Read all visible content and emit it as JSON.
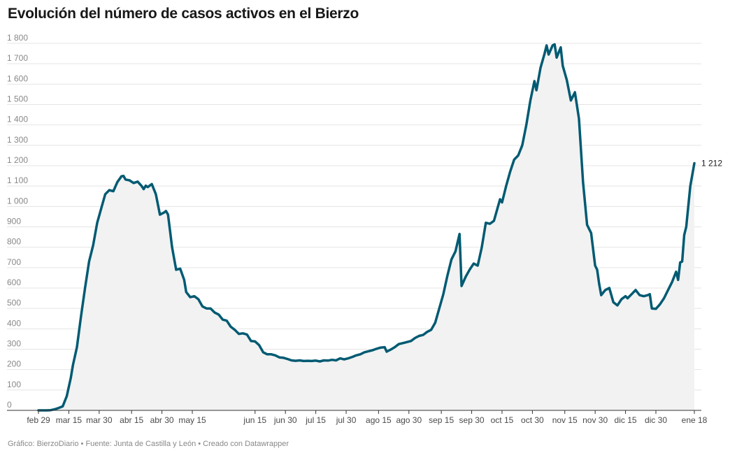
{
  "page": {
    "title": "Evolución del número de casos activos en el Bierzo",
    "footer": "Gráfico: BierzoDiario • Fuente: Junta de Castilla y León • Creado con Datawrapper"
  },
  "colors": {
    "line": "#005a72",
    "area": "#f2f2f2",
    "grid": "#e4e4e4"
  },
  "chart_data": {
    "type": "area",
    "title": "Evolución del número de casos activos en el Bierzo",
    "xlabel": "",
    "ylabel": "",
    "ylim": [
      0,
      1800
    ],
    "y_ticks": [
      0,
      100,
      200,
      300,
      400,
      500,
      600,
      700,
      800,
      900,
      1000,
      1100,
      1200,
      1300,
      1400,
      1500,
      1600,
      1700,
      1800
    ],
    "y_tick_labels": [
      "0",
      "100",
      "200",
      "300",
      "400",
      "500",
      "600",
      "700",
      "800",
      "900",
      "1 000",
      "1 100",
      "1 200",
      "1 300",
      "1 400",
      "1 500",
      "1 600",
      "1 700",
      "1 800"
    ],
    "x_tick_labels": [
      "feb 29",
      "mar 15",
      "mar 30",
      "abr 15",
      "abr 30",
      "may 15",
      "jun 15",
      "jun 30",
      "jul 15",
      "jul 30",
      "ago 15",
      "ago 30",
      "sep 15",
      "sep 30",
      "oct 15",
      "oct 30",
      "nov 15",
      "nov 30",
      "dic 15",
      "dic 30",
      "ene 18"
    ],
    "x_tick_dates": [
      "2020-02-29",
      "2020-03-15",
      "2020-03-30",
      "2020-04-15",
      "2020-04-30",
      "2020-05-15",
      "2020-06-15",
      "2020-06-30",
      "2020-07-15",
      "2020-07-30",
      "2020-08-15",
      "2020-08-30",
      "2020-09-15",
      "2020-09-30",
      "2020-10-15",
      "2020-10-30",
      "2020-11-15",
      "2020-11-30",
      "2020-12-15",
      "2020-12-30",
      "2021-01-18"
    ],
    "grid": true,
    "end_label": "1 212",
    "series": [
      {
        "points": [
          [
            "2020-02-29",
            0
          ],
          [
            "2020-03-02",
            0
          ],
          [
            "2020-03-04",
            0
          ],
          [
            "2020-03-06",
            1
          ],
          [
            "2020-03-08",
            5
          ],
          [
            "2020-03-10",
            12
          ],
          [
            "2020-03-12",
            20
          ],
          [
            "2020-03-14",
            70
          ],
          [
            "2020-03-16",
            160
          ],
          [
            "2020-03-17",
            220
          ],
          [
            "2020-03-19",
            310
          ],
          [
            "2020-03-21",
            460
          ],
          [
            "2020-03-23",
            600
          ],
          [
            "2020-03-25",
            730
          ],
          [
            "2020-03-27",
            810
          ],
          [
            "2020-03-29",
            920
          ],
          [
            "2020-03-31",
            990
          ],
          [
            "2020-04-02",
            1060
          ],
          [
            "2020-04-04",
            1080
          ],
          [
            "2020-04-06",
            1075
          ],
          [
            "2020-04-08",
            1120
          ],
          [
            "2020-04-10",
            1148
          ],
          [
            "2020-04-11",
            1150
          ],
          [
            "2020-04-12",
            1132
          ],
          [
            "2020-04-14",
            1128
          ],
          [
            "2020-04-16",
            1115
          ],
          [
            "2020-04-18",
            1122
          ],
          [
            "2020-04-20",
            1100
          ],
          [
            "2020-04-21",
            1085
          ],
          [
            "2020-04-22",
            1102
          ],
          [
            "2020-04-23",
            1095
          ],
          [
            "2020-04-25",
            1110
          ],
          [
            "2020-04-27",
            1060
          ],
          [
            "2020-04-29",
            960
          ],
          [
            "2020-05-01",
            970
          ],
          [
            "2020-05-02",
            978
          ],
          [
            "2020-05-03",
            960
          ],
          [
            "2020-05-05",
            800
          ],
          [
            "2020-05-07",
            690
          ],
          [
            "2020-05-09",
            695
          ],
          [
            "2020-05-11",
            640
          ],
          [
            "2020-05-12",
            580
          ],
          [
            "2020-05-14",
            555
          ],
          [
            "2020-05-16",
            560
          ],
          [
            "2020-05-18",
            545
          ],
          [
            "2020-05-20",
            510
          ],
          [
            "2020-05-22",
            500
          ],
          [
            "2020-05-24",
            500
          ],
          [
            "2020-05-26",
            480
          ],
          [
            "2020-05-28",
            470
          ],
          [
            "2020-05-30",
            445
          ],
          [
            "2020-06-01",
            440
          ],
          [
            "2020-06-03",
            410
          ],
          [
            "2020-06-05",
            395
          ],
          [
            "2020-06-07",
            375
          ],
          [
            "2020-06-09",
            378
          ],
          [
            "2020-06-11",
            372
          ],
          [
            "2020-06-13",
            340
          ],
          [
            "2020-06-15",
            338
          ],
          [
            "2020-06-17",
            320
          ],
          [
            "2020-06-19",
            285
          ],
          [
            "2020-06-21",
            275
          ],
          [
            "2020-06-23",
            275
          ],
          [
            "2020-06-25",
            270
          ],
          [
            "2020-06-27",
            260
          ],
          [
            "2020-06-29",
            258
          ],
          [
            "2020-07-01",
            252
          ],
          [
            "2020-07-03",
            245
          ],
          [
            "2020-07-05",
            243
          ],
          [
            "2020-07-07",
            245
          ],
          [
            "2020-07-09",
            242
          ],
          [
            "2020-07-11",
            243
          ],
          [
            "2020-07-13",
            242
          ],
          [
            "2020-07-15",
            244
          ],
          [
            "2020-07-17",
            240
          ],
          [
            "2020-07-19",
            245
          ],
          [
            "2020-07-21",
            244
          ],
          [
            "2020-07-23",
            248
          ],
          [
            "2020-07-25",
            245
          ],
          [
            "2020-07-27",
            255
          ],
          [
            "2020-07-29",
            250
          ],
          [
            "2020-07-31",
            255
          ],
          [
            "2020-08-02",
            262
          ],
          [
            "2020-08-04",
            270
          ],
          [
            "2020-08-06",
            275
          ],
          [
            "2020-08-08",
            285
          ],
          [
            "2020-08-10",
            290
          ],
          [
            "2020-08-12",
            295
          ],
          [
            "2020-08-14",
            302
          ],
          [
            "2020-08-16",
            308
          ],
          [
            "2020-08-18",
            310
          ],
          [
            "2020-08-19",
            288
          ],
          [
            "2020-08-21",
            298
          ],
          [
            "2020-08-23",
            310
          ],
          [
            "2020-08-25",
            325
          ],
          [
            "2020-08-27",
            330
          ],
          [
            "2020-08-29",
            335
          ],
          [
            "2020-08-31",
            340
          ],
          [
            "2020-09-02",
            355
          ],
          [
            "2020-09-04",
            365
          ],
          [
            "2020-09-06",
            370
          ],
          [
            "2020-09-08",
            385
          ],
          [
            "2020-09-10",
            395
          ],
          [
            "2020-09-12",
            430
          ],
          [
            "2020-09-14",
            500
          ],
          [
            "2020-09-16",
            570
          ],
          [
            "2020-09-18",
            660
          ],
          [
            "2020-09-20",
            740
          ],
          [
            "2020-09-22",
            780
          ],
          [
            "2020-09-24",
            865
          ],
          [
            "2020-09-25",
            610
          ],
          [
            "2020-09-27",
            655
          ],
          [
            "2020-09-29",
            690
          ],
          [
            "2020-10-01",
            720
          ],
          [
            "2020-10-03",
            710
          ],
          [
            "2020-10-05",
            800
          ],
          [
            "2020-10-07",
            920
          ],
          [
            "2020-10-09",
            915
          ],
          [
            "2020-10-11",
            930
          ],
          [
            "2020-10-13",
            1000
          ],
          [
            "2020-10-14",
            1035
          ],
          [
            "2020-10-15",
            1020
          ],
          [
            "2020-10-17",
            1100
          ],
          [
            "2020-10-19",
            1170
          ],
          [
            "2020-10-21",
            1230
          ],
          [
            "2020-10-23",
            1250
          ],
          [
            "2020-10-25",
            1300
          ],
          [
            "2020-10-27",
            1400
          ],
          [
            "2020-10-29",
            1520
          ],
          [
            "2020-10-31",
            1615
          ],
          [
            "2020-11-01",
            1570
          ],
          [
            "2020-11-03",
            1680
          ],
          [
            "2020-11-05",
            1750
          ],
          [
            "2020-11-06",
            1790
          ],
          [
            "2020-11-07",
            1745
          ],
          [
            "2020-11-09",
            1790
          ],
          [
            "2020-11-10",
            1795
          ],
          [
            "2020-11-11",
            1730
          ],
          [
            "2020-11-13",
            1780
          ],
          [
            "2020-11-14",
            1690
          ],
          [
            "2020-11-16",
            1620
          ],
          [
            "2020-11-18",
            1520
          ],
          [
            "2020-11-20",
            1560
          ],
          [
            "2020-11-22",
            1430
          ],
          [
            "2020-11-24",
            1120
          ],
          [
            "2020-11-26",
            910
          ],
          [
            "2020-11-28",
            870
          ],
          [
            "2020-11-30",
            710
          ],
          [
            "2020-12-01",
            690
          ],
          [
            "2020-12-02",
            620
          ],
          [
            "2020-12-03",
            565
          ],
          [
            "2020-12-05",
            590
          ],
          [
            "2020-12-07",
            600
          ],
          [
            "2020-12-09",
            530
          ],
          [
            "2020-12-11",
            515
          ],
          [
            "2020-12-13",
            545
          ],
          [
            "2020-12-15",
            560
          ],
          [
            "2020-12-16",
            550
          ],
          [
            "2020-12-18",
            570
          ],
          [
            "2020-12-20",
            590
          ],
          [
            "2020-12-22",
            565
          ],
          [
            "2020-12-24",
            560
          ],
          [
            "2020-12-26",
            565
          ],
          [
            "2020-12-27",
            570
          ],
          [
            "2020-12-28",
            500
          ],
          [
            "2020-12-30",
            498
          ],
          [
            "2021-01-01",
            520
          ],
          [
            "2021-01-03",
            550
          ],
          [
            "2021-01-05",
            590
          ],
          [
            "2021-01-07",
            630
          ],
          [
            "2021-01-09",
            680
          ],
          [
            "2021-01-10",
            640
          ],
          [
            "2021-01-11",
            725
          ],
          [
            "2021-01-12",
            730
          ],
          [
            "2021-01-13",
            860
          ],
          [
            "2021-01-14",
            900
          ],
          [
            "2021-01-15",
            1000
          ],
          [
            "2021-01-16",
            1100
          ],
          [
            "2021-01-18",
            1212
          ]
        ]
      }
    ]
  }
}
